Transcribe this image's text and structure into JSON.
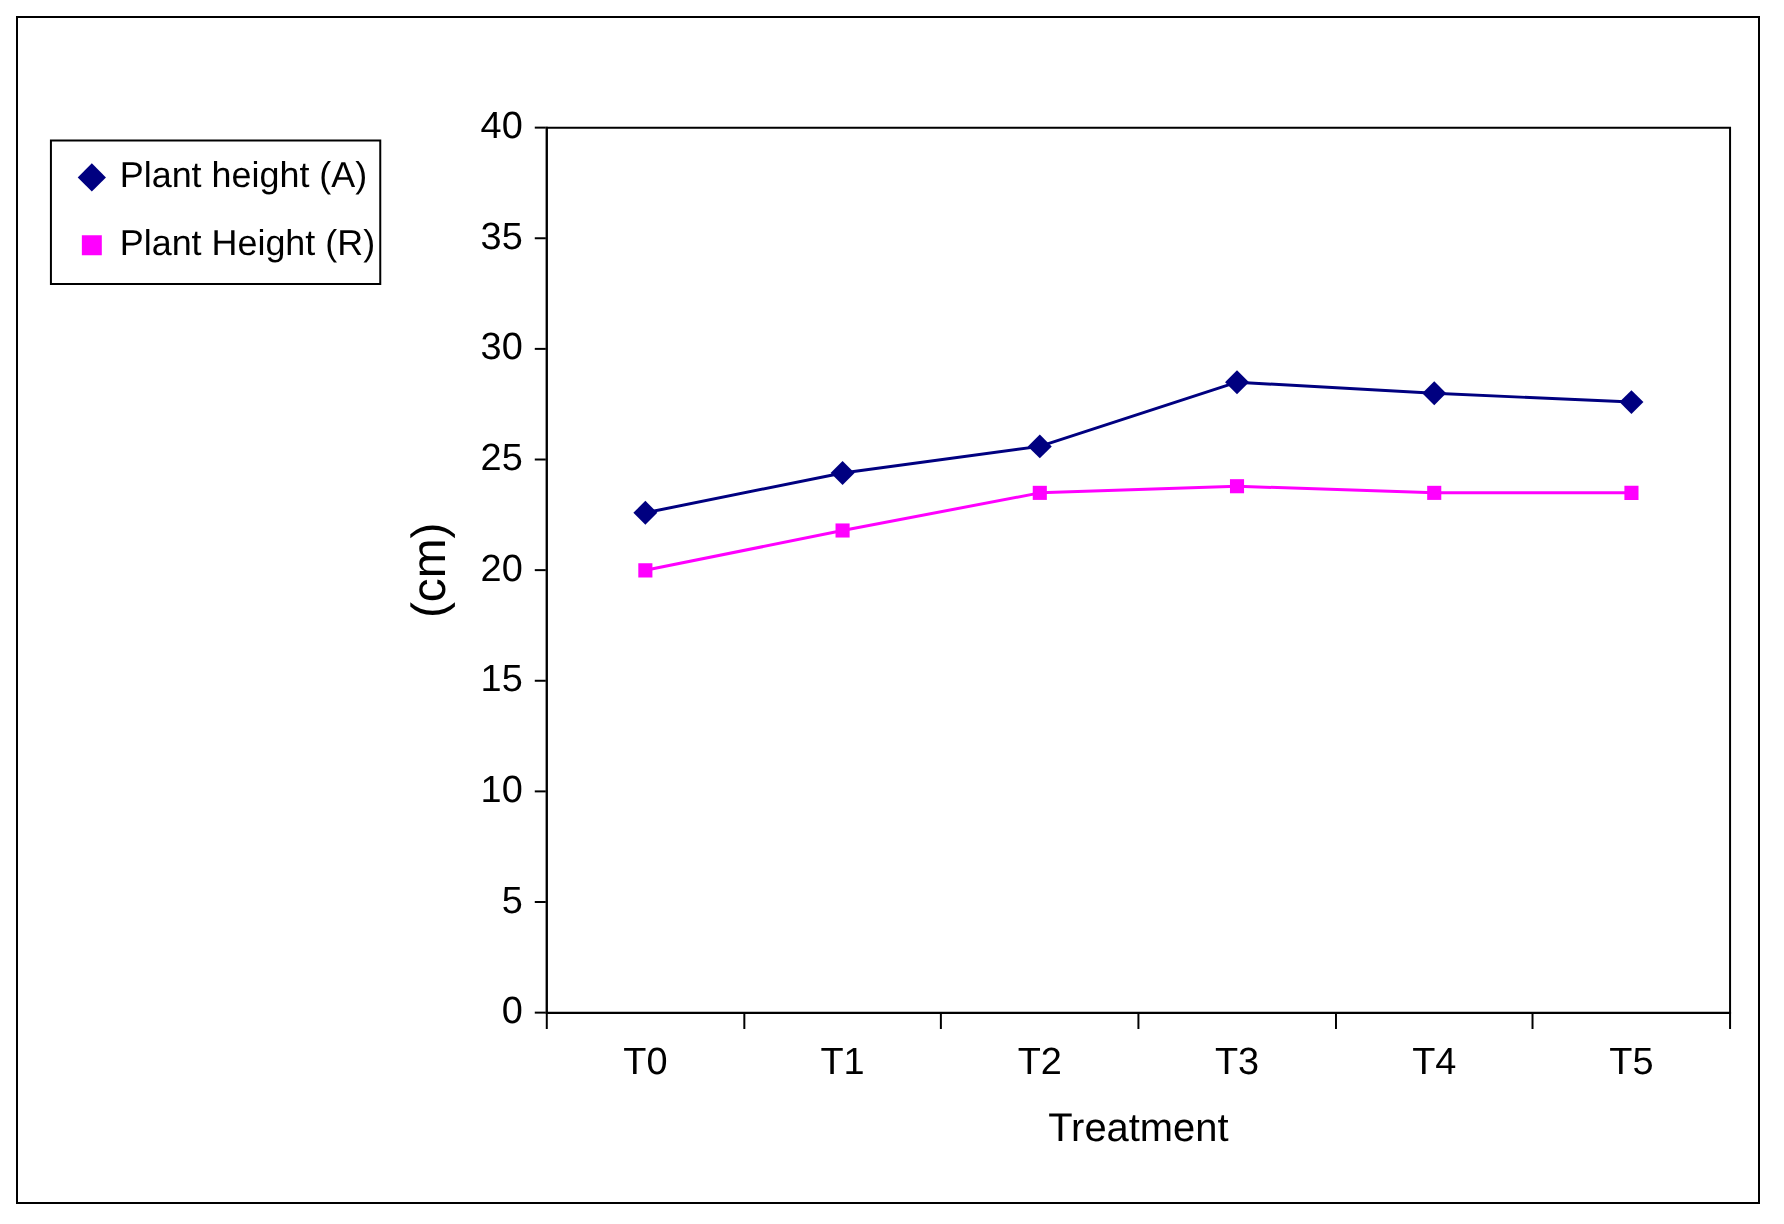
{
  "chart_data": {
    "type": "line",
    "xlabel": "Treatment",
    "ylabel": "(cm)",
    "categories": [
      "T0",
      "T1",
      "T2",
      "T3",
      "T4",
      "T5"
    ],
    "series": [
      {
        "name": "Plant height (A)",
        "color": "#000080",
        "marker": "diamond",
        "values": [
          22.6,
          24.4,
          25.6,
          28.5,
          28.0,
          27.6
        ]
      },
      {
        "name": "Plant Height (R)",
        "color": "#ff00ff",
        "marker": "square",
        "values": [
          20.0,
          21.8,
          23.5,
          23.8,
          23.5,
          23.5
        ]
      }
    ],
    "ylim": [
      0,
      40
    ],
    "yticks": [
      0,
      5,
      10,
      15,
      20,
      25,
      30,
      35,
      40
    ],
    "grid": false,
    "legend": "left",
    "line_style": "solid"
  }
}
